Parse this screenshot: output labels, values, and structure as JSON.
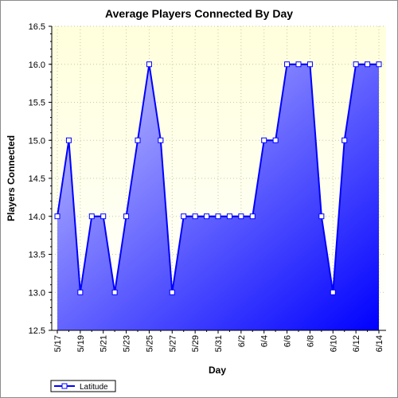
{
  "chart_data": {
    "type": "area",
    "title": "Average Players Connected By Day",
    "xlabel": "Day",
    "ylabel": "Players Connected",
    "ylim": [
      12.5,
      16.5
    ],
    "yticks": [
      "12.5",
      "13.0",
      "13.5",
      "14.0",
      "14.5",
      "15.0",
      "15.5",
      "16.0",
      "16.5"
    ],
    "categories": [
      "5/17",
      "5/18",
      "5/19",
      "5/20",
      "5/21",
      "5/22",
      "5/23",
      "5/24",
      "5/25",
      "5/26",
      "5/27",
      "5/28",
      "5/29",
      "5/30",
      "5/31",
      "6/1",
      "6/2",
      "6/3",
      "6/4",
      "6/5",
      "6/6",
      "6/7",
      "6/8",
      "6/9",
      "6/10",
      "6/11",
      "6/12",
      "6/13",
      "6/14"
    ],
    "xtick_labels": [
      "5/17",
      "5/19",
      "5/21",
      "5/23",
      "5/25",
      "5/27",
      "5/29",
      "5/31",
      "6/2",
      "6/4",
      "6/6",
      "6/8",
      "6/10",
      "6/12",
      "6/14"
    ],
    "series": [
      {
        "name": "Latitude",
        "values": [
          14,
          15,
          13,
          14,
          14,
          13,
          14,
          15,
          16,
          15,
          13,
          14,
          14,
          14,
          14,
          14,
          14,
          14,
          15,
          15,
          16,
          16,
          16,
          14,
          13,
          15,
          16,
          16,
          16
        ]
      }
    ],
    "grid": true,
    "legend_position": "bottom-left",
    "colors": {
      "line": "#0000ff",
      "fill_light": "#c8c8ff",
      "fill_dark": "#0000ff",
      "plot_bg_top": "#ffffdc",
      "plot_bg_bottom": "#ffffff",
      "grid": "#c8c8a0"
    }
  }
}
